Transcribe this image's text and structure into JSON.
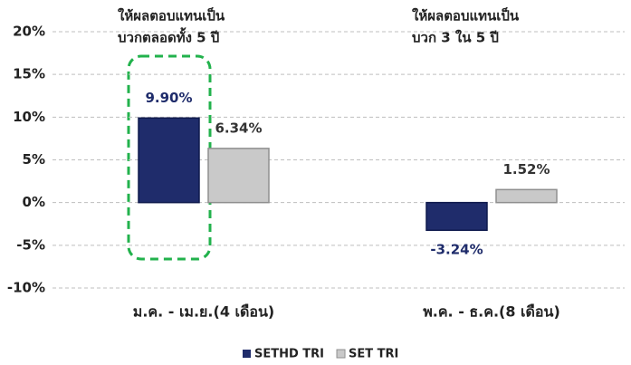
{
  "chart_data": {
    "type": "bar",
    "categories": [
      "ม.ค. - เม.ย.(4 เดือน)",
      "พ.ค. - ธ.ค.(8 เดือน)"
    ],
    "series": [
      {
        "name": "SETHD TRI",
        "color": "#1f2c6b",
        "values": [
          9.9,
          -3.24
        ],
        "value_labels": [
          "9.90%",
          "-3.24%"
        ],
        "label_color": "#1f2c6b"
      },
      {
        "name": "SET TRI",
        "color": "#c9c9c9",
        "values": [
          6.34,
          1.52
        ],
        "value_labels": [
          "6.34%",
          "1.52%"
        ],
        "label_color": "#333333"
      }
    ],
    "ylim": [
      -10,
      20
    ],
    "yticks": [
      {
        "value": -10,
        "label": "-10%"
      },
      {
        "value": -5,
        "label": "-5%"
      },
      {
        "value": 0,
        "label": "0%"
      },
      {
        "value": 5,
        "label": "5%"
      },
      {
        "value": 10,
        "label": "10%"
      },
      {
        "value": 15,
        "label": "15%"
      },
      {
        "value": 20,
        "label": "20%"
      }
    ],
    "grid": true,
    "legend": "bottom",
    "annotations": [
      {
        "lines": [
          "ให้ผลตอบแทนเป็น",
          "บวกตลอดทั้ง 5 ปี"
        ]
      },
      {
        "lines": [
          "ให้ผลตอบแทนเป็น",
          "บวก 3  ใน 5 ปี"
        ]
      }
    ]
  }
}
